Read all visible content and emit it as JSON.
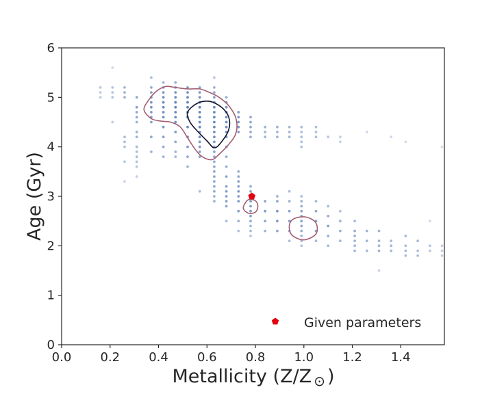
{
  "chart_data": {
    "type": "scatter",
    "xlabel": "Metallicity (Z/Z",
    "xlabel_symbol": "⊙",
    "xlabel_close": ")",
    "ylabel": "Age (Gyr)",
    "xlim": [
      0.0,
      1.58
    ],
    "ylim": [
      0,
      6
    ],
    "xticks": [
      0.0,
      0.2,
      0.4,
      0.6,
      0.8,
      1.0,
      1.2,
      1.4
    ],
    "xtick_labels": [
      "0.0",
      "0.2",
      "0.4",
      "0.6",
      "0.8",
      "1.0",
      "1.2",
      "1.4"
    ],
    "yticks": [
      0,
      1,
      2,
      3,
      4,
      5,
      6
    ],
    "ytick_labels": [
      "0",
      "1",
      "2",
      "3",
      "4",
      "5",
      "6"
    ],
    "grid": false,
    "legend_position": "bottom-right",
    "sample_points": {
      "color": "#4c72b0",
      "columns": [
        {
          "x": 0.16,
          "ages": [
            5.0,
            5.1,
            5.2
          ]
        },
        {
          "x": 0.21,
          "ages": [
            4.5,
            5.0,
            5.1,
            5.2,
            5.6
          ]
        },
        {
          "x": 0.26,
          "ages": [
            3.3,
            3.7,
            4.0,
            4.1,
            4.2,
            5.0,
            5.1,
            5.2
          ]
        },
        {
          "x": 0.31,
          "ages": [
            3.4,
            3.6,
            3.7,
            3.8,
            3.9,
            4.0,
            4.2,
            4.3,
            4.5,
            4.6,
            4.7,
            4.8,
            5.0
          ]
        },
        {
          "x": 0.37,
          "ages": [
            3.9,
            4.2,
            4.5,
            4.6,
            4.7,
            4.8,
            4.9,
            5.0,
            5.1,
            5.2,
            5.4
          ]
        },
        {
          "x": 0.42,
          "ages": [
            3.8,
            4.0,
            4.2,
            4.4,
            4.6,
            4.7,
            4.8,
            4.9,
            5.0,
            5.1,
            5.2,
            5.3
          ]
        },
        {
          "x": 0.47,
          "ages": [
            3.8,
            3.9,
            4.1,
            4.3,
            4.5,
            4.6,
            4.7,
            4.8,
            4.9,
            5.0,
            5.1,
            5.2,
            5.3
          ]
        },
        {
          "x": 0.52,
          "ages": [
            3.6,
            3.8,
            4.0,
            4.2,
            4.4,
            4.6,
            4.7,
            4.8,
            4.9,
            5.0,
            5.1,
            5.2
          ]
        },
        {
          "x": 0.57,
          "ages": [
            3.1,
            3.8,
            3.9,
            4.0,
            4.1,
            4.2,
            4.3,
            4.4,
            4.5,
            4.6,
            4.7,
            4.8,
            4.9,
            5.0,
            5.1,
            5.2
          ]
        },
        {
          "x": 0.63,
          "ages": [
            2.9,
            3.0,
            3.1,
            3.2,
            3.3,
            3.4,
            3.5,
            3.6,
            3.7,
            3.8,
            3.9,
            4.0,
            4.1,
            4.2,
            4.3,
            4.4,
            4.5,
            4.6,
            4.7,
            4.8,
            4.9,
            5.0,
            5.1,
            5.2,
            5.4
          ]
        },
        {
          "x": 0.68,
          "ages": [
            2.5,
            2.8,
            2.9,
            3.0,
            3.1,
            3.2,
            3.4,
            3.6,
            3.8,
            4.0,
            4.2,
            4.3,
            4.4,
            4.5,
            4.6,
            4.7,
            4.8,
            4.9,
            5.0
          ]
        },
        {
          "x": 0.73,
          "ages": [
            2.3,
            2.5,
            2.7,
            2.9,
            3.0,
            3.1,
            3.2,
            3.3,
            3.4,
            3.5,
            4.3,
            4.4,
            4.5,
            4.6,
            4.7
          ]
        },
        {
          "x": 0.78,
          "ages": [
            2.2,
            2.3,
            2.4,
            2.5,
            2.6,
            2.7,
            2.8,
            2.9,
            3.0,
            3.1,
            3.2,
            4.2,
            4.3,
            4.4,
            4.5,
            4.6
          ]
        },
        {
          "x": 0.84,
          "ages": [
            2.3,
            2.5,
            2.7,
            2.9,
            4.2,
            4.3,
            4.4
          ]
        },
        {
          "x": 0.89,
          "ages": [
            2.3,
            2.5,
            2.7,
            2.9,
            3.0,
            4.2,
            4.3,
            4.4
          ]
        },
        {
          "x": 0.94,
          "ages": [
            2.1,
            2.3,
            2.5,
            2.7,
            2.9,
            3.1,
            4.2,
            4.3,
            4.4
          ]
        },
        {
          "x": 0.99,
          "ages": [
            2.0,
            2.1,
            2.2,
            2.3,
            2.4,
            2.5,
            2.6,
            2.7,
            2.8,
            2.9,
            3.0,
            4.0,
            4.1,
            4.2,
            4.3,
            4.4
          ]
        },
        {
          "x": 1.05,
          "ages": [
            2.1,
            2.3,
            2.5,
            2.7,
            2.9,
            4.2,
            4.3,
            4.4
          ]
        },
        {
          "x": 1.1,
          "ages": [
            2.0,
            2.2,
            2.4,
            2.6,
            2.8,
            4.2
          ]
        },
        {
          "x": 1.15,
          "ages": [
            2.1,
            2.3,
            2.5,
            2.7,
            4.1,
            4.2
          ]
        },
        {
          "x": 1.21,
          "ages": [
            1.9,
            2.0,
            2.1,
            2.2,
            2.3,
            2.5
          ]
        },
        {
          "x": 1.26,
          "ages": [
            1.9,
            2.1,
            2.3,
            4.3
          ]
        },
        {
          "x": 1.31,
          "ages": [
            1.5,
            1.9,
            2.0,
            2.1,
            2.3
          ]
        },
        {
          "x": 1.36,
          "ages": [
            1.9,
            2.0,
            2.1,
            4.2
          ]
        },
        {
          "x": 1.42,
          "ages": [
            1.8,
            1.9,
            2.0,
            2.2,
            4.1
          ]
        },
        {
          "x": 1.47,
          "ages": [
            1.8,
            1.9,
            2.1
          ]
        },
        {
          "x": 1.52,
          "ages": [
            1.9,
            2.0,
            2.5
          ]
        },
        {
          "x": 1.57,
          "ages": [
            1.8,
            1.9,
            2.0,
            4.0
          ]
        }
      ]
    },
    "contours": [
      {
        "level": "outer",
        "color": "#a35d73",
        "paths": [
          [
            [
              0.34,
              4.75
            ],
            [
              0.36,
              4.95
            ],
            [
              0.39,
              5.12
            ],
            [
              0.43,
              5.22
            ],
            [
              0.47,
              5.2
            ],
            [
              0.52,
              5.17
            ],
            [
              0.57,
              5.17
            ],
            [
              0.61,
              5.1
            ],
            [
              0.65,
              5.0
            ],
            [
              0.69,
              4.83
            ],
            [
              0.72,
              4.57
            ],
            [
              0.72,
              4.28
            ],
            [
              0.69,
              4.05
            ],
            [
              0.65,
              3.85
            ],
            [
              0.62,
              3.74
            ],
            [
              0.58,
              3.8
            ],
            [
              0.55,
              3.96
            ],
            [
              0.52,
              4.18
            ],
            [
              0.49,
              4.4
            ],
            [
              0.45,
              4.5
            ],
            [
              0.41,
              4.52
            ],
            [
              0.37,
              4.57
            ],
            [
              0.34,
              4.75
            ]
          ],
          [
            [
              0.77,
              2.93
            ],
            [
              0.8,
              2.91
            ],
            [
              0.81,
              2.8
            ],
            [
              0.8,
              2.68
            ],
            [
              0.77,
              2.66
            ],
            [
              0.75,
              2.77
            ],
            [
              0.77,
              2.93
            ]
          ],
          [
            [
              0.96,
              2.55
            ],
            [
              1.01,
              2.58
            ],
            [
              1.05,
              2.46
            ],
            [
              1.05,
              2.24
            ],
            [
              1.0,
              2.12
            ],
            [
              0.95,
              2.22
            ],
            [
              0.94,
              2.42
            ],
            [
              0.96,
              2.55
            ]
          ]
        ]
      },
      {
        "level": "inner",
        "color": "#12122e",
        "paths": [
          [
            [
              0.52,
              4.7
            ],
            [
              0.56,
              4.88
            ],
            [
              0.61,
              4.92
            ],
            [
              0.66,
              4.8
            ],
            [
              0.69,
              4.6
            ],
            [
              0.69,
              4.35
            ],
            [
              0.66,
              4.1
            ],
            [
              0.63,
              3.98
            ],
            [
              0.6,
              4.12
            ],
            [
              0.56,
              4.32
            ],
            [
              0.53,
              4.5
            ],
            [
              0.52,
              4.7
            ]
          ]
        ]
      }
    ],
    "given_parameters": {
      "x": 0.785,
      "y": 3.0,
      "color": "#e3000f",
      "marker": "pentagon"
    },
    "legend": [
      {
        "label": "Given parameters",
        "color": "#e3000f",
        "marker": "pentagon"
      }
    ]
  }
}
